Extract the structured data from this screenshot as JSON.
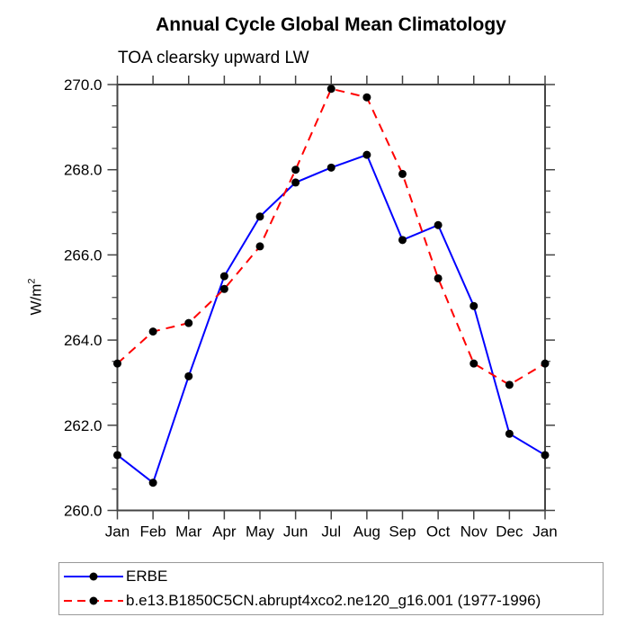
{
  "title": "Annual Cycle Global Mean Climatology",
  "subtitle": "TOA clearsky upward LW",
  "y_axis_label": {
    "base": "W/m",
    "exponent": "2"
  },
  "chart_data": {
    "type": "line",
    "categories": [
      "Jan",
      "Feb",
      "Mar",
      "Apr",
      "May",
      "Jun",
      "Jul",
      "Aug",
      "Sep",
      "Oct",
      "Nov",
      "Dec",
      "Jan"
    ],
    "series": [
      {
        "name": "ERBE",
        "color": "#0000ff",
        "line_style": "solid",
        "marker": "filled-circle",
        "marker_color": "#000000",
        "values": [
          261.3,
          260.65,
          263.15,
          265.5,
          266.9,
          267.7,
          268.05,
          268.35,
          266.35,
          266.7,
          264.8,
          261.8,
          261.3
        ]
      },
      {
        "name": "b.e13.B1850C5CN.abrupt4xco2.ne120_g16.001 (1977-1996)",
        "color": "#ff0000",
        "line_style": "dashed",
        "marker": "filled-circle",
        "marker_color": "#000000",
        "values": [
          263.45,
          264.2,
          264.4,
          265.2,
          266.2,
          268.0,
          269.9,
          269.7,
          267.9,
          265.45,
          263.45,
          262.95,
          263.45
        ]
      }
    ],
    "xlabel": "",
    "ylabel": "W/m2",
    "ylim": [
      260.0,
      270.0
    ],
    "y_major_step": 2.0,
    "y_minor_step": 0.5,
    "y_tick_labels": [
      "260.0",
      "262.0",
      "264.0",
      "266.0",
      "268.0",
      "270.0"
    ],
    "grid": false,
    "legend_position": "bottom-left"
  },
  "colors": {
    "axis": "#444444",
    "tick_text": "#000000",
    "background": "#ffffff",
    "legend_border": "#999999"
  }
}
